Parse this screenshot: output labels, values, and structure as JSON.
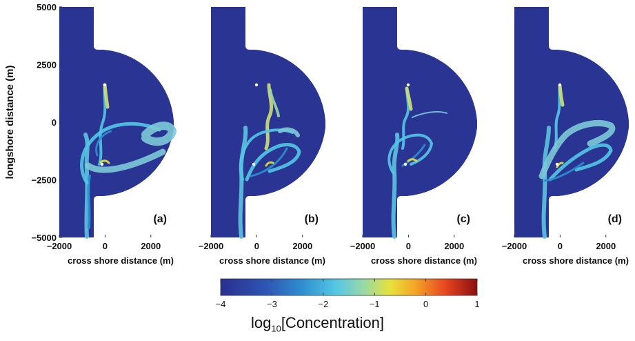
{
  "chart_data": {
    "type": "heatmap",
    "panels": [
      {
        "label": "(a)"
      },
      {
        "label": "(b)"
      },
      {
        "label": "(c)"
      },
      {
        "label": "(d)"
      }
    ],
    "xlabel": "cross shore distance (m)",
    "ylabel": "longshore distance (m)",
    "xlim": [
      -2000,
      3000
    ],
    "ylim": [
      -5000,
      5000
    ],
    "x_ticks": [
      -2000,
      0,
      2000
    ],
    "y_ticks": [
      5000,
      2500,
      0,
      -2500,
      -5000
    ],
    "x_tick_labels": [
      "−2000",
      "0",
      "2000"
    ],
    "y_tick_labels": [
      "5000",
      "2500",
      "0",
      "−2500",
      "−5000"
    ],
    "colorbar": {
      "title_main": "log",
      "title_sub": "10",
      "title_rest": "[Concentration]",
      "range": [
        -4,
        1
      ],
      "ticks": [
        -4,
        -3,
        -2,
        -1,
        0,
        1
      ],
      "tick_labels": [
        "−4",
        "−3",
        "−2",
        "−1",
        "0",
        "1"
      ],
      "colormap": "jet"
    },
    "colors": {
      "background_field": "#2a3593",
      "land": "#ffffff"
    }
  }
}
